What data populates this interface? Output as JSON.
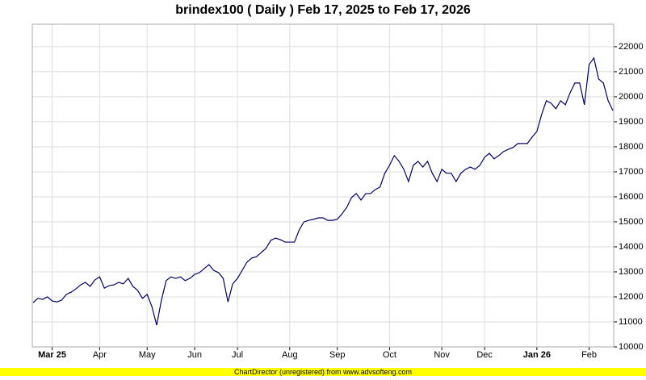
{
  "chart_data": {
    "type": "line",
    "title": "brindex100 ( Daily ) Feb 17, 2025 to Feb 17, 2026",
    "footer": "ChartDirector (unregistered) from www.advsofteng.com",
    "categories": [
      null,
      null,
      null,
      null,
      "Mar 25",
      null,
      null,
      null,
      null,
      null,
      null,
      null,
      null,
      null,
      "Apr",
      null,
      null,
      null,
      null,
      null,
      null,
      null,
      null,
      null,
      "May",
      null,
      null,
      null,
      null,
      null,
      null,
      null,
      null,
      null,
      "Jun",
      null,
      null,
      null,
      null,
      null,
      null,
      null,
      null,
      "Jul",
      null,
      null,
      null,
      null,
      null,
      null,
      null,
      null,
      null,
      null,
      "Aug",
      null,
      null,
      null,
      null,
      null,
      null,
      null,
      null,
      null,
      "Sep",
      null,
      null,
      null,
      null,
      null,
      null,
      null,
      null,
      null,
      null,
      "Oct",
      null,
      null,
      null,
      null,
      null,
      null,
      null,
      null,
      null,
      null,
      "Nov",
      null,
      null,
      null,
      null,
      null,
      null,
      null,
      null,
      "Dec",
      null,
      null,
      null,
      null,
      null,
      null,
      null,
      null,
      null,
      null,
      "Jan 26",
      null,
      null,
      null,
      null,
      null,
      null,
      null,
      null,
      null,
      null,
      "Feb",
      null,
      null,
      null,
      null,
      null
    ],
    "values": [
      11770,
      11940,
      11900,
      12000,
      11840,
      11800,
      11870,
      12100,
      12190,
      12320,
      12480,
      12580,
      12420,
      12680,
      12800,
      12350,
      12450,
      12480,
      12580,
      12520,
      12740,
      12420,
      12260,
      11940,
      12100,
      11610,
      10870,
      11870,
      12650,
      12800,
      12740,
      12800,
      12650,
      12740,
      12900,
      12970,
      13130,
      13290,
      13060,
      12970,
      12740,
      11800,
      12520,
      12740,
      13060,
      13390,
      13550,
      13610,
      13770,
      13940,
      14260,
      14350,
      14290,
      14190,
      14190,
      14190,
      14680,
      15000,
      15060,
      15100,
      15160,
      15160,
      15060,
      15060,
      15100,
      15320,
      15580,
      15970,
      16130,
      15870,
      16130,
      16130,
      16290,
      16390,
      16940,
      17260,
      17650,
      17420,
      17100,
      16610,
      17260,
      17420,
      17190,
      17420,
      16940,
      16610,
      17100,
      16940,
      16940,
      16610,
      16940,
      17100,
      17190,
      17100,
      17260,
      17580,
      17740,
      17520,
      17650,
      17810,
      17900,
      17970,
      18130,
      18130,
      18130,
      18390,
      18610,
      19290,
      19840,
      19740,
      19520,
      19840,
      19680,
      20160,
      20550,
      20550,
      19680,
      21290,
      21550,
      20710,
      20550,
      19840,
      19450
    ],
    "color": "#000066",
    "ylim": [
      10000,
      22900
    ],
    "yticks": [
      10000,
      11000,
      12000,
      13000,
      14000,
      15000,
      16000,
      17000,
      18000,
      19000,
      20000,
      21000,
      22000
    ],
    "grid": true
  }
}
